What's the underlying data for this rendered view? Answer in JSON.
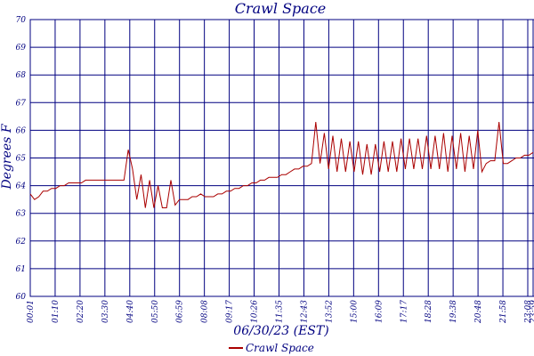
{
  "chart_data": {
    "type": "line",
    "title": "Crawl Space",
    "xlabel": "06/30/23 (EST)",
    "ylabel": "Degrees F",
    "ylim": [
      60,
      70
    ],
    "yticks": [
      "60",
      "61",
      "62",
      "63",
      "64",
      "65",
      "66",
      "67",
      "68",
      "69",
      "70"
    ],
    "xticks": [
      "00:01",
      "01:10",
      "02:20",
      "03:30",
      "04:40",
      "05:50",
      "06:59",
      "08:08",
      "09:17",
      "10:26",
      "11:35",
      "12:43",
      "13:52",
      "15:00",
      "16:09",
      "17:17",
      "18:28",
      "19:38",
      "20:48",
      "21:58",
      "23:08",
      "23:59"
    ],
    "grid": true,
    "legend_position": "bottom-center",
    "colors": {
      "series": "#aa0000",
      "grid": "#000080",
      "text": "#000080"
    },
    "series": [
      {
        "name": "Crawl Space",
        "x_range": [
          "00:01",
          "23:59"
        ],
        "values": [
          63.7,
          63.5,
          63.6,
          63.8,
          63.8,
          63.9,
          63.9,
          64.0,
          64.0,
          64.1,
          64.1,
          64.1,
          64.1,
          64.2,
          64.2,
          64.2,
          64.2,
          64.2,
          64.2,
          64.2,
          64.2,
          64.2,
          64.2,
          65.3,
          64.6,
          63.5,
          64.4,
          63.2,
          64.2,
          63.2,
          64.0,
          63.2,
          63.2,
          64.2,
          63.3,
          63.5,
          63.5,
          63.5,
          63.6,
          63.6,
          63.7,
          63.6,
          63.6,
          63.6,
          63.7,
          63.7,
          63.8,
          63.8,
          63.9,
          63.9,
          64.0,
          64.0,
          64.1,
          64.1,
          64.2,
          64.2,
          64.3,
          64.3,
          64.3,
          64.4,
          64.4,
          64.5,
          64.6,
          64.6,
          64.7,
          64.7,
          64.8,
          66.3,
          64.8,
          65.9,
          64.6,
          65.8,
          64.5,
          65.7,
          64.5,
          65.6,
          64.5,
          65.6,
          64.4,
          65.5,
          64.4,
          65.5,
          64.5,
          65.6,
          64.5,
          65.6,
          64.5,
          65.7,
          64.6,
          65.7,
          64.6,
          65.7,
          64.6,
          65.8,
          64.6,
          65.8,
          64.6,
          65.9,
          64.5,
          65.8,
          64.6,
          65.9,
          64.5,
          65.8,
          64.6,
          66.0,
          64.5,
          64.8,
          64.9,
          64.9,
          66.3,
          64.8,
          64.8,
          64.9,
          65.0,
          65.0,
          65.1,
          65.1,
          65.2
        ]
      }
    ]
  }
}
